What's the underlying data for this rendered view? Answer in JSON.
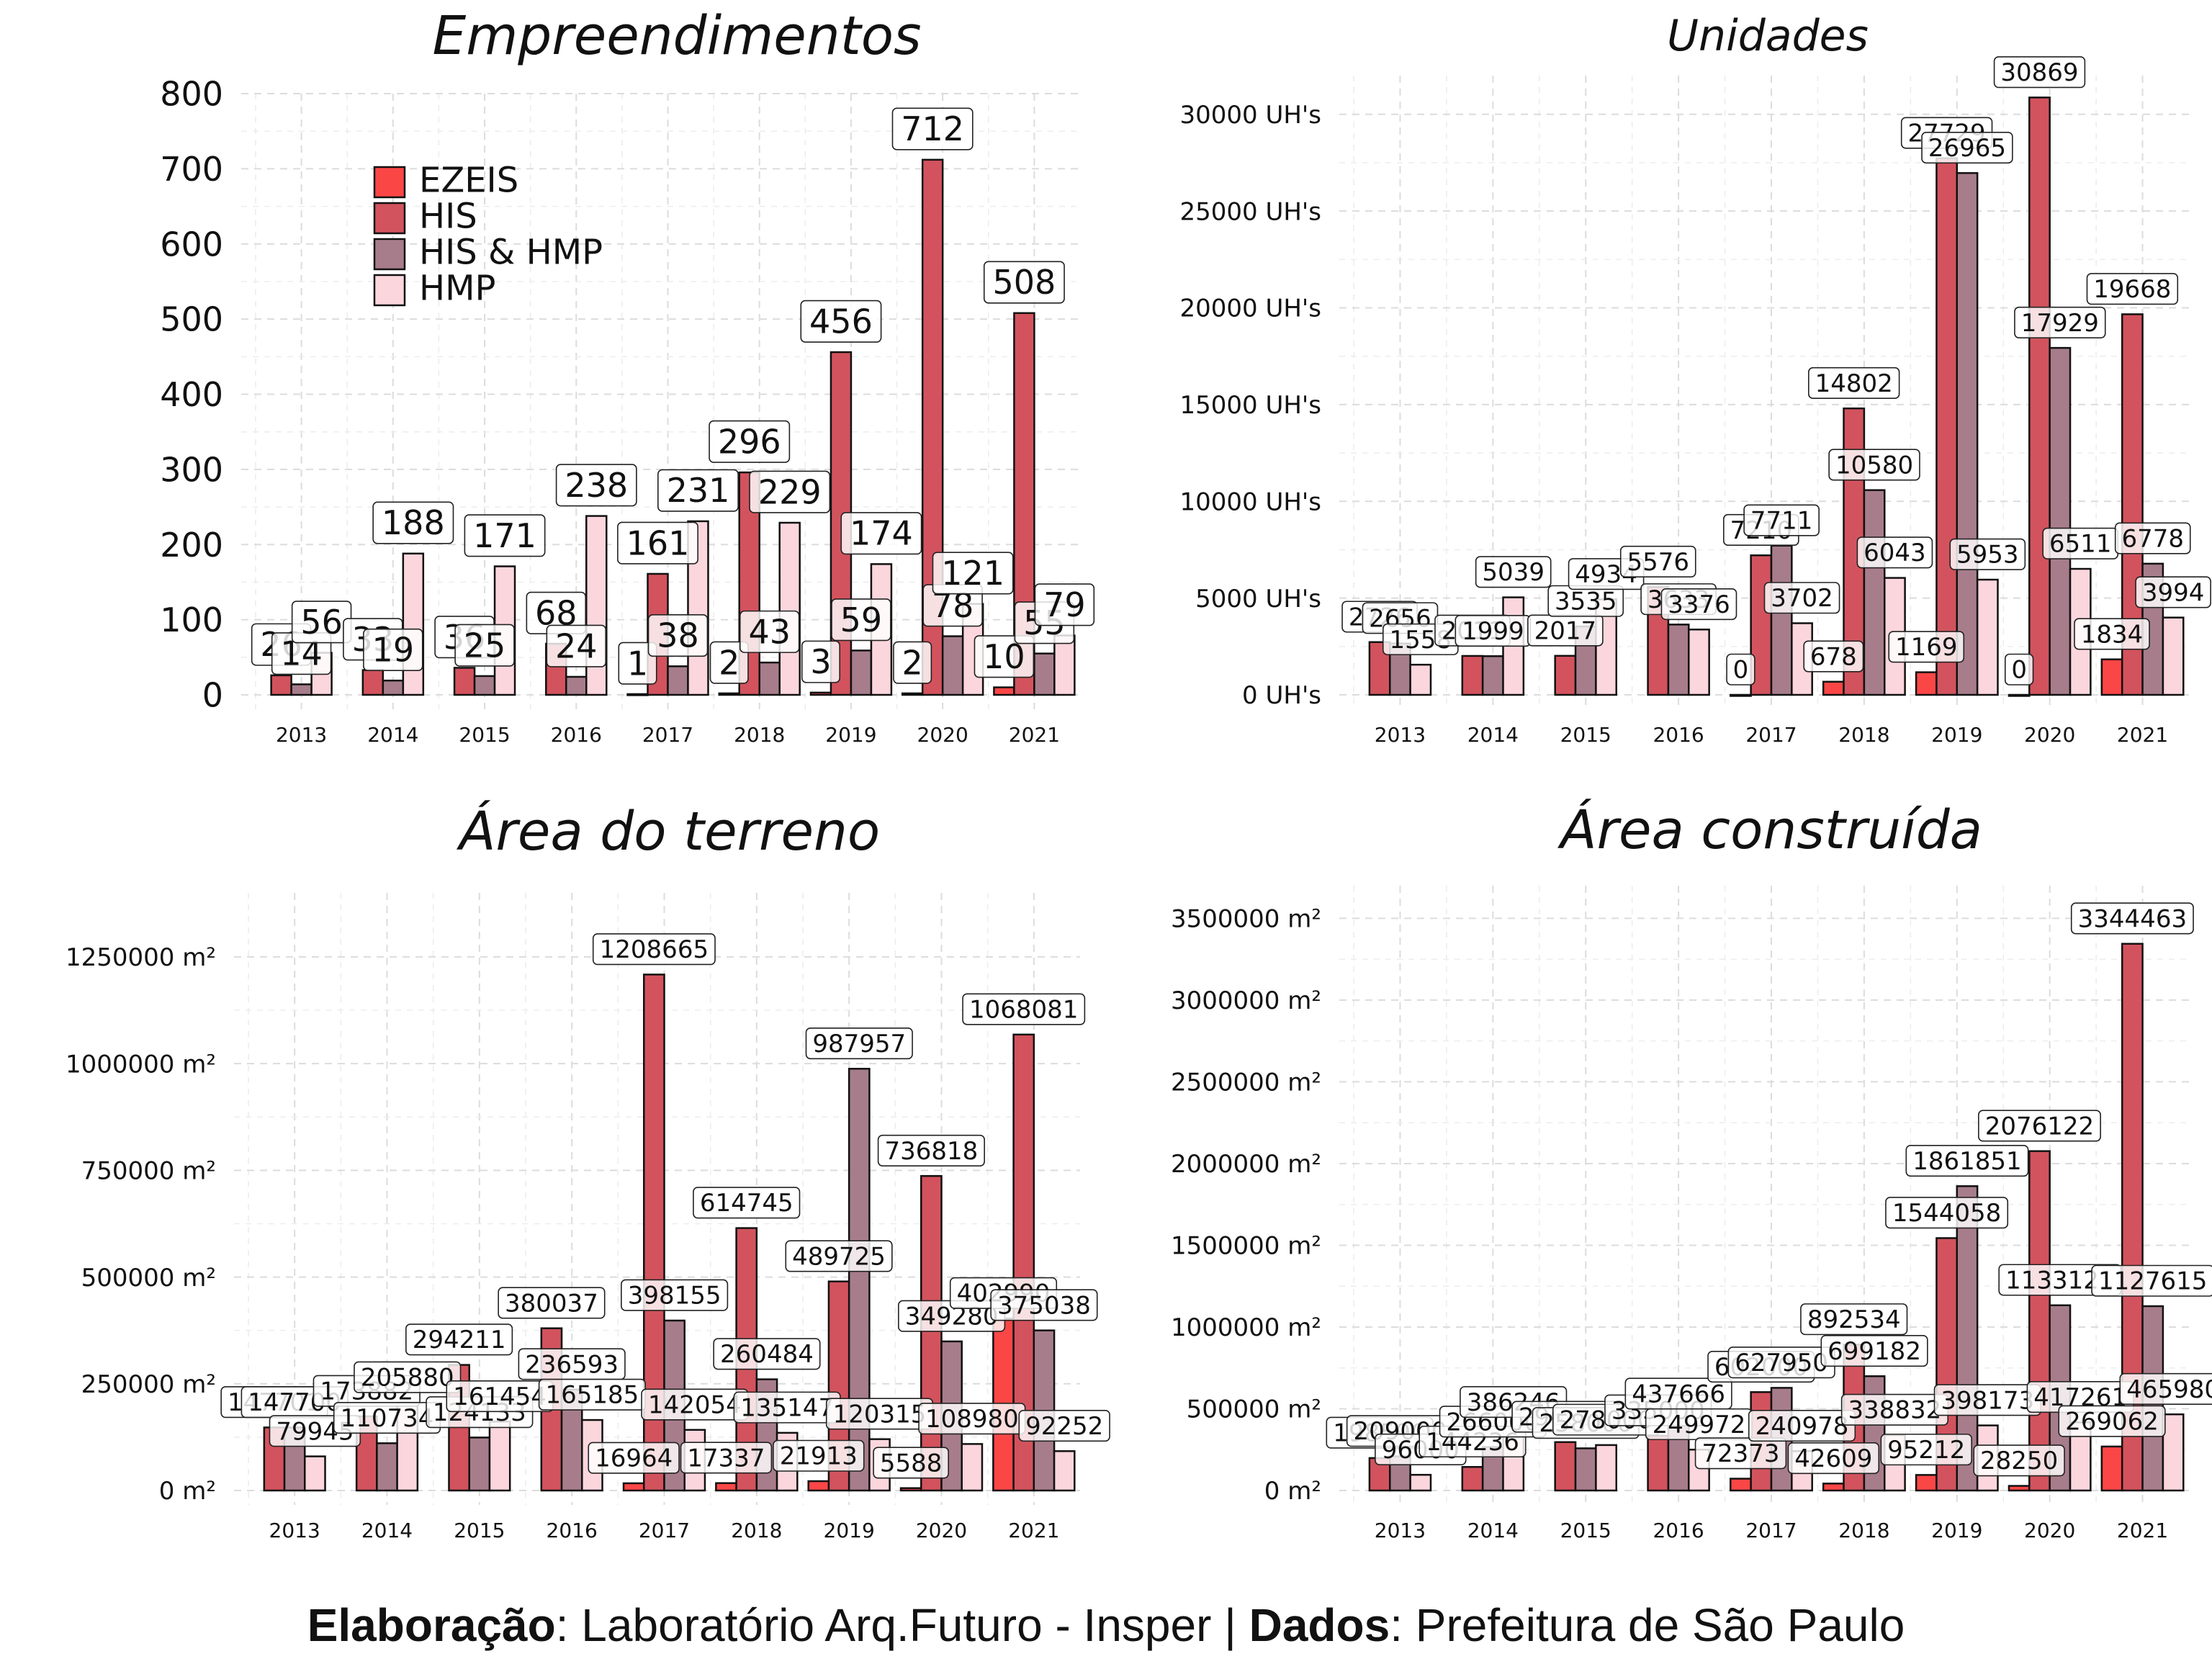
{
  "colors": {
    "EZEIS": "#fb4646",
    "HIS": "#d2535d",
    "HIS & HMP": "#a77d8b",
    "HMP": "#fcd6dd",
    "grid": "#dcdcdc"
  },
  "legend": {
    "placement": "top-left",
    "entries": [
      "EZEIS",
      "HIS",
      "HIS & HMP",
      "HMP"
    ]
  },
  "caption": {
    "part1_bold": "Elaboração",
    "part1_rest": ": Laboratório Arq.Futuro - Insper | ",
    "part2_bold": "Dados",
    "part2_rest": ": Prefeitura de São Paulo"
  },
  "chart_data": [
    {
      "type": "bar",
      "title": "Empreendimentos",
      "categories": [
        "2013",
        "2014",
        "2015",
        "2016",
        "2017",
        "2018",
        "2019",
        "2020",
        "2021"
      ],
      "ylim": [
        0,
        800
      ],
      "ytick_values": [
        0,
        100,
        200,
        300,
        400,
        500,
        600,
        700,
        800
      ],
      "ytick_labels": [
        "0",
        "100",
        "200",
        "300",
        "400",
        "500",
        "600",
        "700",
        "800"
      ],
      "grid": true,
      "series": [
        {
          "name": "EZEIS",
          "values": [
            null,
            null,
            null,
            null,
            1,
            2,
            3,
            2,
            10
          ]
        },
        {
          "name": "HIS",
          "values": [
            26,
            33,
            36,
            68,
            161,
            296,
            456,
            712,
            508
          ]
        },
        {
          "name": "HIS & HMP",
          "values": [
            14,
            19,
            25,
            24,
            38,
            43,
            59,
            78,
            55
          ]
        },
        {
          "name": "HMP",
          "values": [
            56,
            188,
            171,
            238,
            231,
            229,
            174,
            121,
            79
          ]
        }
      ]
    },
    {
      "type": "bar",
      "title": "Unidades",
      "categories": [
        "2013",
        "2014",
        "2015",
        "2016",
        "2017",
        "2018",
        "2019",
        "2020",
        "2021"
      ],
      "ylim": [
        0,
        32000
      ],
      "ytick_values": [
        0,
        5000,
        10000,
        15000,
        20000,
        25000,
        30000
      ],
      "ytick_labels": [
        "0 UH's",
        "5000 UH's",
        "10000 UH's",
        "15000 UH's",
        "20000 UH's",
        "25000 UH's",
        "30000 UH's"
      ],
      "grid": true,
      "series": [
        {
          "name": "EZEIS",
          "values": [
            null,
            null,
            null,
            null,
            0,
            678,
            1169,
            0,
            1834
          ]
        },
        {
          "name": "HIS",
          "values": [
            2726,
            2011,
            2017,
            5576,
            7210,
            14802,
            27729,
            30869,
            19668
          ]
        },
        {
          "name": "HIS & HMP",
          "values": [
            2656,
            1999,
            3535,
            3633,
            7711,
            10580,
            26965,
            17929,
            6778
          ]
        },
        {
          "name": "HMP",
          "values": [
            1558,
            5039,
            4934,
            3376,
            3702,
            6043,
            5953,
            6511,
            3994
          ]
        }
      ]
    },
    {
      "type": "bar",
      "title": "Área do terreno",
      "categories": [
        "2013",
        "2014",
        "2015",
        "2016",
        "2017",
        "2018",
        "2019",
        "2020",
        "2021"
      ],
      "ylim": [
        0,
        1400000
      ],
      "ytick_values": [
        0,
        250000,
        500000,
        750000,
        1000000,
        1250000
      ],
      "ytick_labels": [
        "0 m²",
        "250000 m²",
        "500000 m²",
        "750000 m²",
        "1000000 m²",
        "1250000 m²"
      ],
      "grid": true,
      "series": [
        {
          "name": "EZEIS",
          "values": [
            null,
            null,
            null,
            null,
            16964,
            17337,
            21913,
            5588,
            402990
          ]
        },
        {
          "name": "HIS",
          "values": [
            147701,
            173882,
            294211,
            380037,
            1208665,
            614745,
            489725,
            736818,
            1068081
          ]
        },
        {
          "name": "HIS & HMP",
          "values": [
            147700,
            110734,
            124133,
            236593,
            398155,
            260484,
            987957,
            349280,
            375038
          ]
        },
        {
          "name": "HMP",
          "values": [
            79945,
            205880,
            161454,
            165185,
            142054,
            135147,
            120315,
            108980,
            92252
          ]
        }
      ]
    },
    {
      "type": "bar",
      "title": "Área construída",
      "categories": [
        "2013",
        "2014",
        "2015",
        "2016",
        "2017",
        "2018",
        "2019",
        "2020",
        "2021"
      ],
      "ylim": [
        0,
        3700000
      ],
      "ytick_values": [
        0,
        500000,
        1000000,
        1500000,
        2000000,
        2500000,
        3000000,
        3500000
      ],
      "ytick_labels": [
        "0 m²",
        "500000 m²",
        "1000000 m²",
        "1500000 m²",
        "2000000 m²",
        "2500000 m²",
        "3000000 m²",
        "3500000 m²"
      ],
      "grid": true,
      "series": [
        {
          "name": "EZEIS",
          "values": [
            null,
            null,
            null,
            null,
            72373,
            42609,
            95212,
            28250,
            269062
          ]
        },
        {
          "name": "HIS",
          "values": [
            198590,
            144236,
            296090,
            335000,
            602000,
            892534,
            1544058,
            2076122,
            3344463
          ]
        },
        {
          "name": "HIS & HMP",
          "values": [
            209000,
            266000,
            258000,
            437666,
            627950,
            699182,
            1861851,
            1133121,
            1127615
          ]
        },
        {
          "name": "HMP",
          "values": [
            96000,
            386246,
            278000,
            249972,
            240978,
            338832,
            398173,
            417261,
            465980
          ]
        }
      ]
    }
  ]
}
